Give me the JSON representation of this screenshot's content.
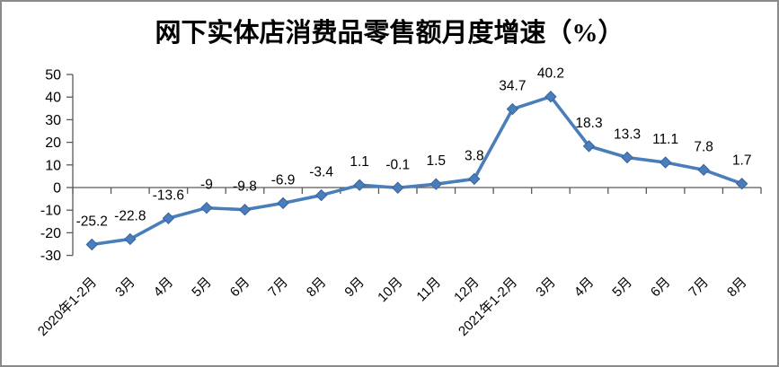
{
  "window": {
    "background": "#ffffff",
    "border_color": "#8a8a8a"
  },
  "chart_data": {
    "type": "line",
    "title": "网下实体店消费品零售额月度增速（%）",
    "categories": [
      "2020年1-2月",
      "3月",
      "4月",
      "5月",
      "6月",
      "7月",
      "8月",
      "9月",
      "10月",
      "11月",
      "12月",
      "2021年1-2月",
      "3月",
      "4月",
      "5月",
      "6月",
      "7月",
      "8月"
    ],
    "values": [
      -25.2,
      -22.8,
      -13.6,
      -9,
      -9.8,
      -6.9,
      -3.4,
      1.1,
      -0.1,
      1.5,
      3.8,
      34.7,
      40.2,
      18.3,
      13.3,
      11.1,
      7.8,
      1.7
    ],
    "data_labels": [
      "-25.2",
      "-22.8",
      "-13.6",
      "-9",
      "-9.8",
      "-6.9",
      "-3.4",
      "1.1",
      "-0.1",
      "1.5",
      "3.8",
      "34.7",
      "40.2",
      "18.3",
      "13.3",
      "11.1",
      "7.8",
      "1.7"
    ],
    "xlabel": "",
    "ylabel": "",
    "ylim": [
      -30,
      50
    ],
    "yticks": [
      50,
      40,
      30,
      20,
      10,
      0,
      -10,
      -20,
      -30
    ],
    "grid": false,
    "legend": "none",
    "marker": "diamond",
    "x_label_rotation_deg": 45,
    "colors": {
      "line": "#4a7ebb",
      "marker_fill": "#4a7ebb",
      "marker_edge": "#38619e",
      "axis": "#595959",
      "tick_text": "#000000",
      "label_text": "#000000",
      "title_text": "#000000"
    }
  }
}
